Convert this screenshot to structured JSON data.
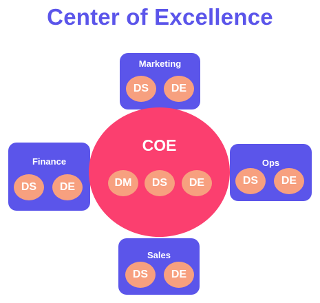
{
  "title": "Center of Excellence",
  "center": {
    "label": "COE",
    "roles": [
      "DM",
      "DS",
      "DE"
    ]
  },
  "teams": {
    "marketing": {
      "label": "Marketing",
      "roles": [
        "DS",
        "DE"
      ]
    },
    "finance": {
      "label": "Finance",
      "roles": [
        "DS",
        "DE"
      ]
    },
    "ops": {
      "label": "Ops",
      "roles": [
        "DS",
        "DE"
      ]
    },
    "sales": {
      "label": "Sales",
      "roles": [
        "DS",
        "DE"
      ]
    }
  },
  "colors": {
    "title": "#5b55ea",
    "team_box": "#5b55ea",
    "center": "#fb3f6f",
    "role_badge": "#f7a07f"
  }
}
